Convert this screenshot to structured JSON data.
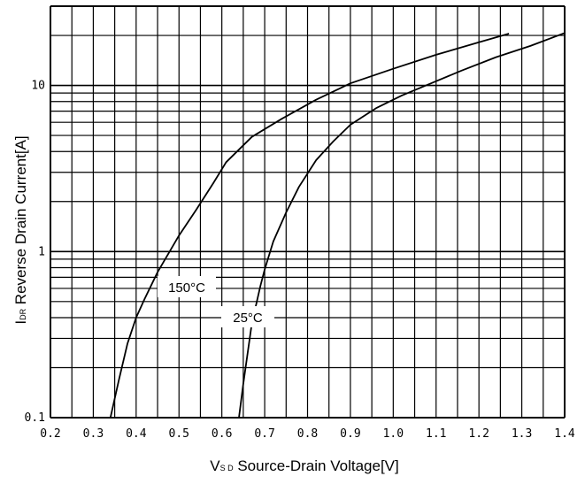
{
  "chart_data": {
    "type": "line",
    "xlabel_main": "V",
    "xlabel_sub": "S D",
    "xlabel_rest": " Source-Drain Voltage[V]",
    "ylabel_main": "I",
    "ylabel_sub": "DR",
    "ylabel_rest": " Reverse Drain Current[A]",
    "xlim": [
      0.2,
      1.4
    ],
    "ylim": [
      0.1,
      30
    ],
    "yscale": "log",
    "grid": true,
    "xticks": [
      "0.2",
      "0.3",
      "0.4",
      "0.5",
      "0.6",
      "0.7",
      "0.8",
      "0.9",
      "1.0",
      "1.1",
      "1.2",
      "1.3",
      "1.4"
    ],
    "yticks": [
      {
        "label": "0.1",
        "value": 0.1
      },
      {
        "label": "1",
        "value": 1
      },
      {
        "label": "10",
        "value": 10
      }
    ],
    "series": [
      {
        "name": "150°C",
        "x": [
          0.34,
          0.36,
          0.38,
          0.4,
          0.42,
          0.45,
          0.48,
          0.5,
          0.54,
          0.58,
          0.61,
          0.67,
          0.74,
          0.82,
          0.9,
          1.0,
          1.1,
          1.2,
          1.27
        ],
        "y": [
          0.1,
          0.17,
          0.28,
          0.4,
          0.52,
          0.75,
          1.02,
          1.25,
          1.78,
          2.58,
          3.45,
          4.9,
          6.3,
          8.2,
          10.3,
          12.6,
          15.3,
          18.2,
          20.5
        ]
      },
      {
        "name": "25°C",
        "x": [
          0.64,
          0.65,
          0.67,
          0.69,
          0.7,
          0.72,
          0.75,
          0.78,
          0.82,
          0.86,
          0.9,
          0.96,
          1.02,
          1.08,
          1.16,
          1.24,
          1.32,
          1.4
        ],
        "y": [
          0.1,
          0.16,
          0.37,
          0.62,
          0.78,
          1.15,
          1.72,
          2.45,
          3.55,
          4.6,
          5.8,
          7.3,
          8.7,
          10.1,
          12.3,
          14.8,
          17.3,
          20.7
        ]
      }
    ]
  }
}
